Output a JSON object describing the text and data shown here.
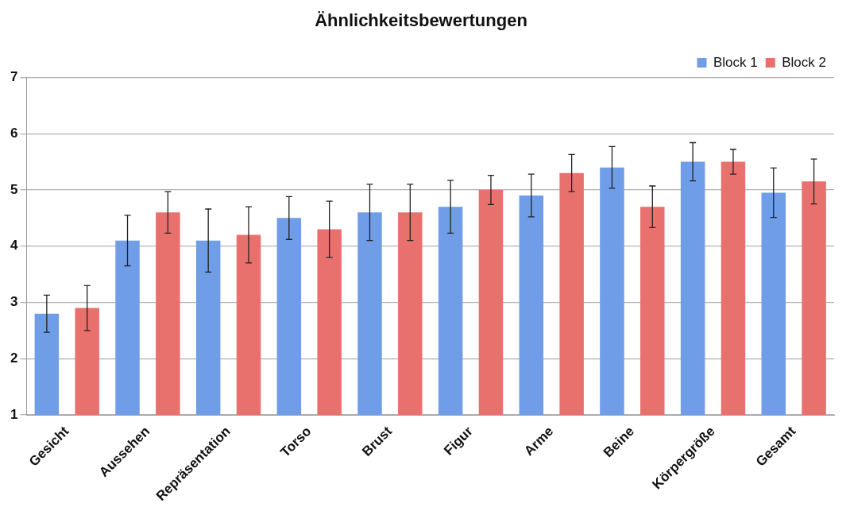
{
  "chart_data": {
    "type": "bar",
    "title": "Ähnlichkeitsbewertungen",
    "categories": [
      "Gesicht",
      "Aussehen",
      "Repräsentation",
      "Torso",
      "Brust",
      "Figur",
      "Arme",
      "Beine",
      "Körpergröße",
      "Gesamt"
    ],
    "series": [
      {
        "name": "Block 1",
        "color": "#6f9de8",
        "values": [
          2.8,
          4.1,
          4.1,
          4.5,
          4.6,
          4.7,
          4.9,
          5.4,
          5.5,
          4.95
        ],
        "errors": [
          0.33,
          0.45,
          0.56,
          0.38,
          0.5,
          0.47,
          0.38,
          0.37,
          0.34,
          0.44
        ]
      },
      {
        "name": "Block 2",
        "color": "#e9716d",
        "values": [
          2.9,
          4.6,
          4.2,
          4.3,
          4.6,
          5.0,
          5.3,
          4.7,
          5.5,
          5.15
        ],
        "errors": [
          0.4,
          0.37,
          0.5,
          0.5,
          0.5,
          0.26,
          0.33,
          0.37,
          0.22,
          0.4
        ]
      }
    ],
    "ylim": [
      1,
      7
    ],
    "yticks": [
      1,
      2,
      3,
      4,
      5,
      6,
      7
    ],
    "grid": "y",
    "legend": "top right"
  }
}
